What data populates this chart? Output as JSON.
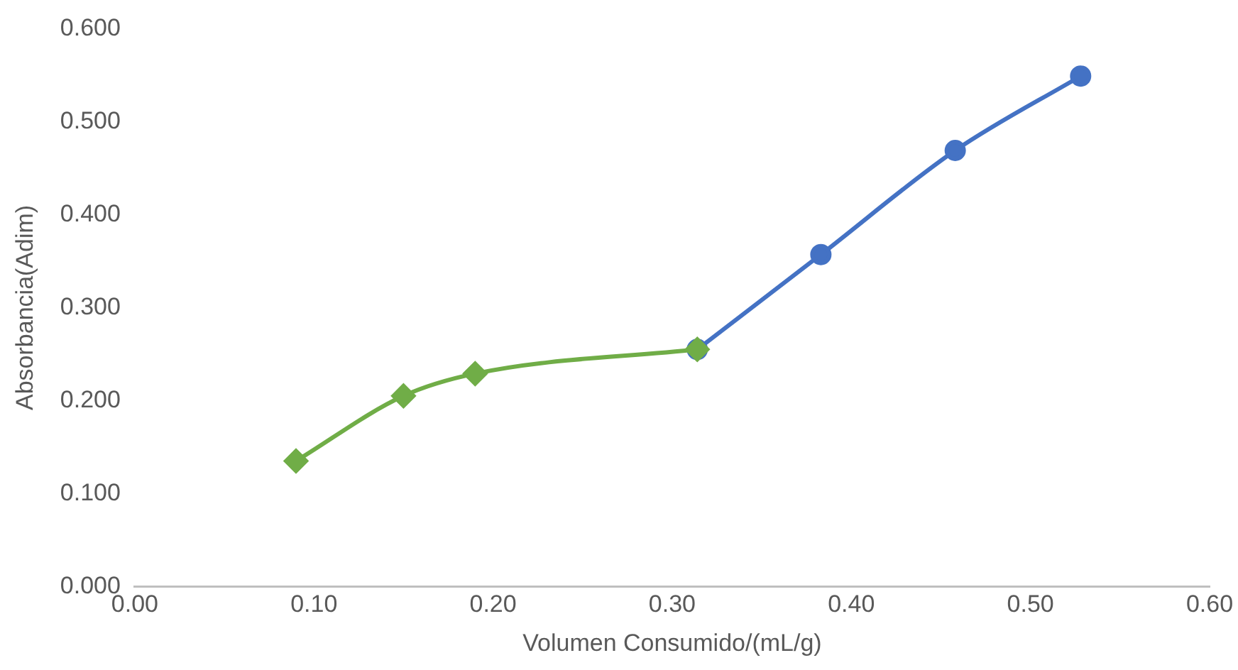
{
  "chart_data": {
    "type": "line",
    "xlabel": "Volumen Consumido/(mL/g)",
    "ylabel": "Absorbancia(Adim)",
    "series": [
      {
        "color": "#70ad47",
        "marker": "diamond",
        "x": [
          0.09,
          0.15,
          0.19,
          0.314
        ],
        "values": [
          0.135,
          0.205,
          0.229,
          0.255
        ]
      },
      {
        "color": "#4472c4",
        "marker": "circle",
        "x": [
          0.314,
          0.383,
          0.458,
          0.528
        ],
        "values": [
          0.255,
          0.357,
          0.469,
          0.549
        ]
      }
    ],
    "xlim": [
      0,
      0.6
    ],
    "ylim": [
      0,
      0.6
    ],
    "xticks": [
      {
        "value": 0,
        "label": "0.00"
      },
      {
        "value": 0.1,
        "label": "0.10"
      },
      {
        "value": 0.2,
        "label": "0.20"
      },
      {
        "value": 0.3,
        "label": "0.30"
      },
      {
        "value": 0.4,
        "label": "0.40"
      },
      {
        "value": 0.5,
        "label": "0.50"
      },
      {
        "value": 0.6,
        "label": "0.60"
      }
    ],
    "yticks": [
      {
        "value": 0,
        "label": "0.000"
      },
      {
        "value": 0.1,
        "label": "0.100"
      },
      {
        "value": 0.2,
        "label": "0.200"
      },
      {
        "value": 0.3,
        "label": "0.300"
      },
      {
        "value": 0.4,
        "label": "0.400"
      },
      {
        "value": 0.5,
        "label": "0.500"
      },
      {
        "value": 0.6,
        "label": "0.600"
      }
    ],
    "grid": false,
    "legend": false,
    "line_style": "solid"
  }
}
